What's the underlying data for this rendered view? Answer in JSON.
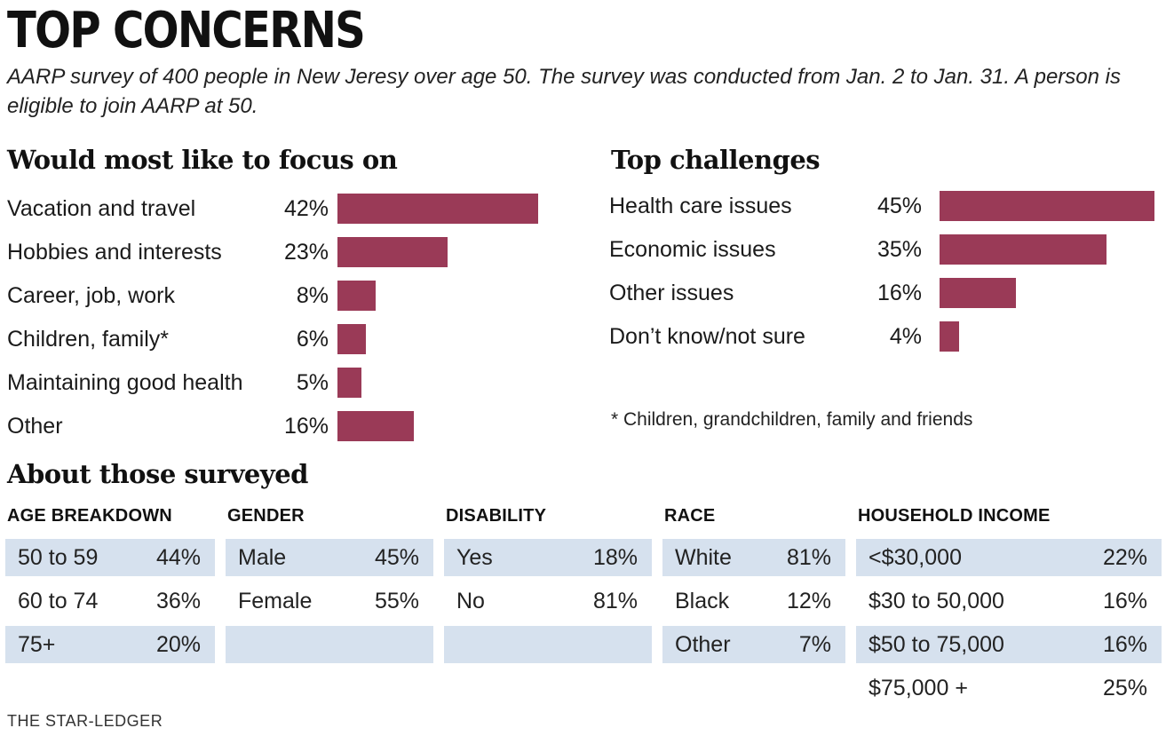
{
  "title": "TOP CONCERNS",
  "subtitle": "AARP survey of 400 people in New Jeresy over age 50. The survey was conducted from Jan. 2 to Jan. 31. A person is eligible to join AARP at 50.",
  "bar_color": "#9a3a57",
  "shade_color": "#d6e1ee",
  "chart_data": [
    {
      "type": "bar",
      "orientation": "horizontal",
      "title": "Would most like to focus on",
      "categories": [
        "Vacation and travel",
        "Hobbies and interests",
        "Career, job, work",
        "Children, family*",
        "Maintaining good health",
        "Other"
      ],
      "values": [
        42,
        23,
        8,
        6,
        5,
        16
      ],
      "labels": [
        "42%",
        "23%",
        "8%",
        "6%",
        "5%",
        "16%"
      ],
      "unit": "%",
      "xlim": [
        0,
        42
      ]
    },
    {
      "type": "bar",
      "orientation": "horizontal",
      "title": "Top challenges",
      "categories": [
        "Health care issues",
        "Economic issues",
        "Other issues",
        "Don’t know/not sure"
      ],
      "values": [
        45,
        35,
        16,
        4
      ],
      "labels": [
        "45%",
        "35%",
        "16%",
        "4%"
      ],
      "unit": "%",
      "xlim": [
        0,
        45
      ]
    }
  ],
  "footnote": "* Children, grandchildren, family and friends",
  "surveyed": {
    "heading": "About those surveyed",
    "columns": [
      {
        "header": "AGE BREAKDOWN",
        "rows": [
          {
            "k": "50 to 59",
            "v": "44%"
          },
          {
            "k": "60 to 74",
            "v": "36%"
          },
          {
            "k": "75+",
            "v": "20%"
          }
        ]
      },
      {
        "header": "GENDER",
        "rows": [
          {
            "k": "Male",
            "v": "45%"
          },
          {
            "k": "Female",
            "v": "55%"
          },
          {
            "k": "",
            "v": ""
          }
        ]
      },
      {
        "header": "DISABILITY",
        "rows": [
          {
            "k": "Yes",
            "v": "18%"
          },
          {
            "k": "No",
            "v": "81%"
          },
          {
            "k": "",
            "v": ""
          }
        ]
      },
      {
        "header": "RACE",
        "rows": [
          {
            "k": "White",
            "v": "81%"
          },
          {
            "k": "Black",
            "v": "12%"
          },
          {
            "k": "Other",
            "v": "7%"
          }
        ]
      },
      {
        "header": "HOUSEHOLD INCOME",
        "rows": [
          {
            "k": "<$30,000",
            "v": "22%"
          },
          {
            "k": "$30 to 50,000",
            "v": "16%"
          },
          {
            "k": "$50 to 75,000",
            "v": "16%"
          },
          {
            "k": "$75,000 +",
            "v": "25%"
          }
        ]
      }
    ]
  },
  "credit": "THE STAR-LEDGER"
}
